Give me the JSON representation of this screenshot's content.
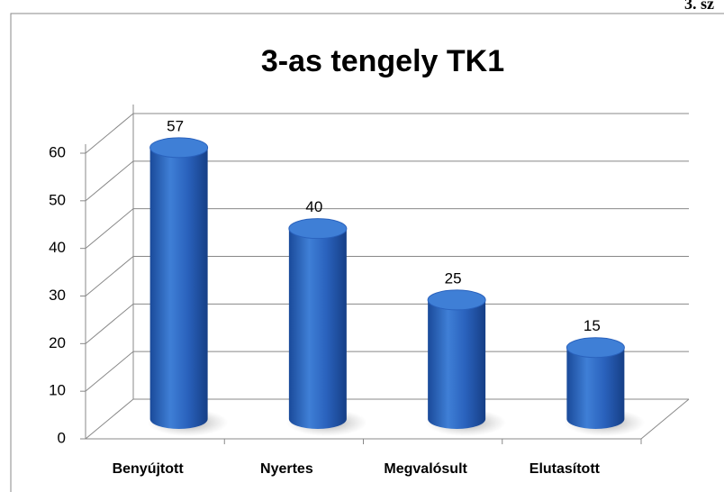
{
  "page_header": "3. sz",
  "chart_data": {
    "type": "bar",
    "title": "3-as tengely TK1",
    "categories": [
      "Benyújtott",
      "Nyertes",
      "Megvalósult",
      "Elutasított"
    ],
    "values": [
      57,
      40,
      25,
      15
    ],
    "color": "#2a62bd",
    "ylim": [
      0,
      60
    ],
    "yticks": [
      0,
      10,
      20,
      30,
      40,
      50,
      60
    ],
    "grid": true
  }
}
